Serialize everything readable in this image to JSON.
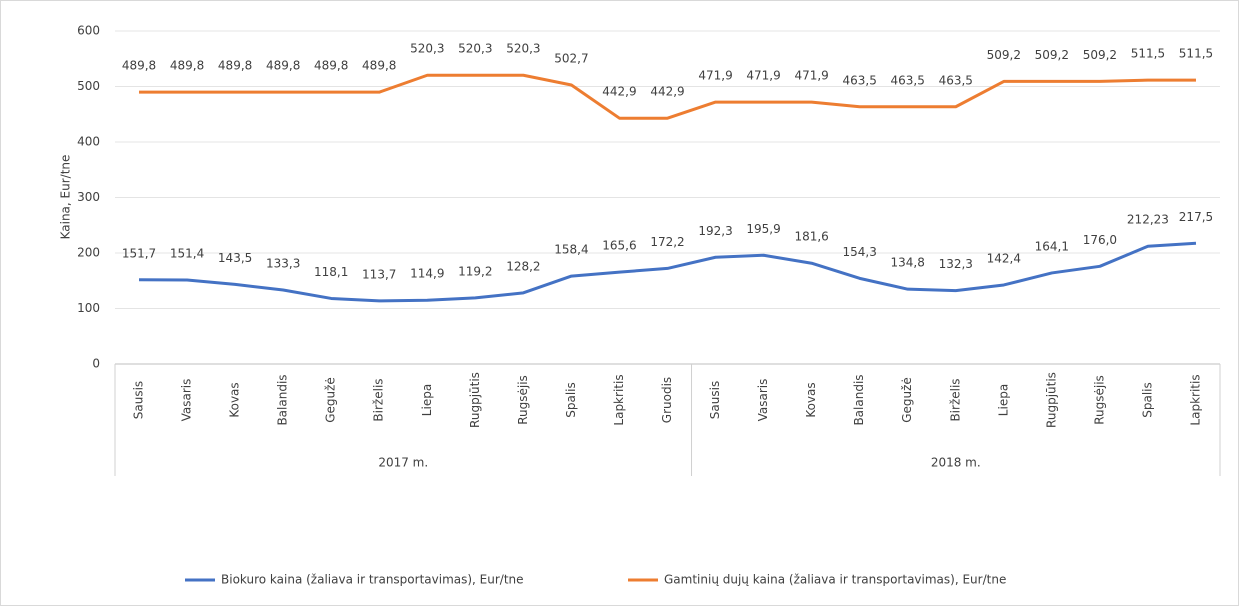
{
  "chart_data": {
    "type": "line",
    "y_label": "Kaina, Eur/tne",
    "groups": [
      {
        "name": "2017 m.",
        "categories": [
          "Sausis",
          "Vasaris",
          "Kovas",
          "Balandis",
          "Gegužė",
          "Birželis",
          "Liepa",
          "Rugpjūtis",
          "Rugsėjis",
          "Spalis",
          "Lapkritis",
          "Gruodis"
        ]
      },
      {
        "name": "2018 m.",
        "categories": [
          "Sausis",
          "Vasaris",
          "Kovas",
          "Balandis",
          "Gegužė",
          "Birželis",
          "Liepa",
          "Rugpjūtis",
          "Rugsėjis",
          "Spalis",
          "Lapkritis"
        ]
      }
    ],
    "series": [
      {
        "name": "Biokuro kaina (žaliava ir transportavimas), Eur/tne",
        "color": "#4472c4",
        "values": [
          151.7,
          151.4,
          143.5,
          133.3,
          118.1,
          113.7,
          114.9,
          119.2,
          128.2,
          158.4,
          165.6,
          172.2,
          192.3,
          195.9,
          181.6,
          154.3,
          134.8,
          132.3,
          142.4,
          164.1,
          176.0,
          212.23,
          217.5
        ],
        "value_labels": [
          "151,7",
          "151,4",
          "143,5",
          "133,3",
          "118,1",
          "113,7",
          "114,9",
          "119,2",
          "128,2",
          "158,4",
          "165,6",
          "172,2",
          "192,3",
          "195,9",
          "181,6",
          "154,3",
          "134,8",
          "132,3",
          "142,4",
          "164,1",
          "176,0",
          "212,23",
          "217,5"
        ]
      },
      {
        "name": "Gamtinių dujų kaina (žaliava ir transportavimas), Eur/tne",
        "color": "#ed7d31",
        "values": [
          489.8,
          489.8,
          489.8,
          489.8,
          489.8,
          489.8,
          520.3,
          520.3,
          520.3,
          502.7,
          442.9,
          442.9,
          471.9,
          471.9,
          471.9,
          463.5,
          463.5,
          463.5,
          509.2,
          509.2,
          509.2,
          511.5,
          511.5
        ],
        "value_labels": [
          "489,8",
          "489,8",
          "489,8",
          "489,8",
          "489,8",
          "489,8",
          "520,3",
          "520,3",
          "520,3",
          "502,7",
          "442,9",
          "442,9",
          "471,9",
          "471,9",
          "471,9",
          "463,5",
          "463,5",
          "463,5",
          "509,2",
          "509,2",
          "509,2",
          "511,5",
          "511,5"
        ]
      }
    ],
    "ylim": [
      0,
      600
    ],
    "yticks": [
      0,
      100,
      200,
      300,
      400,
      500,
      600
    ],
    "grid": true,
    "legend": "bottom"
  }
}
